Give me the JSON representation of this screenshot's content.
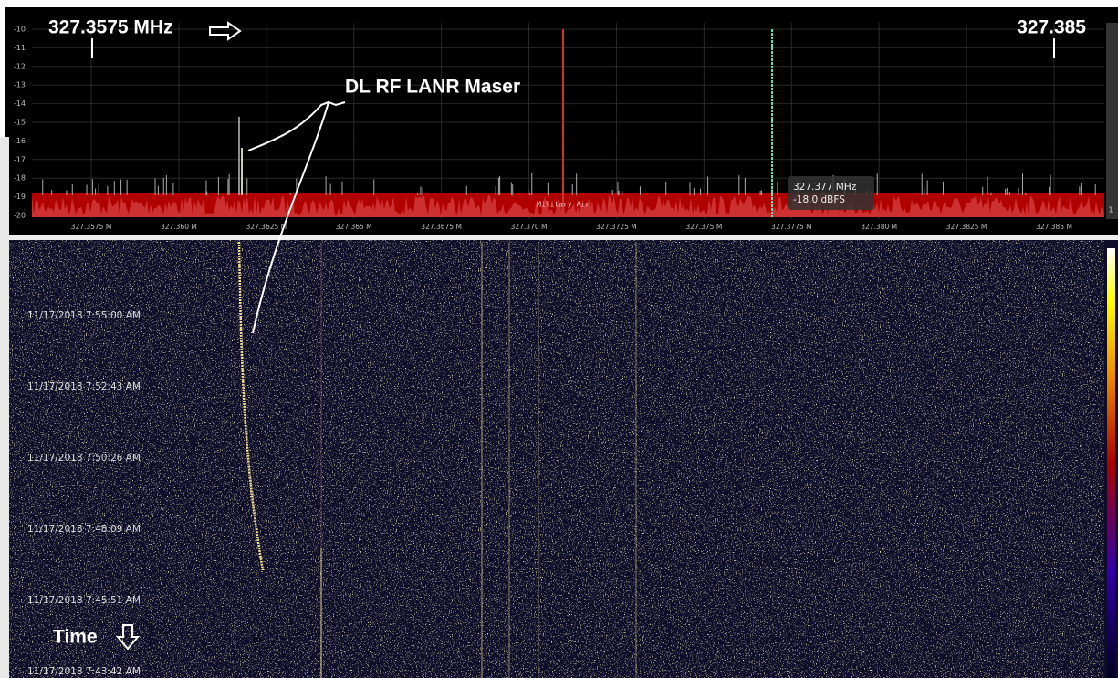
{
  "spectrum": {
    "yticks": [
      -10,
      -11,
      -12,
      -13,
      -14,
      -15,
      -16,
      -17,
      -18,
      -19,
      -20
    ],
    "xticks": [
      "327.3575 M",
      "327.360 M",
      "327.3625 M",
      "327.365 M",
      "327.3675 M",
      "327.370 M",
      "327.3725 M",
      "327.375 M",
      "327.3775 M",
      "327.380 M",
      "327.3825 M",
      "327.385 M"
    ],
    "band_label": "Military Air",
    "tooltip": {
      "frequency": "327.377 MHz",
      "level": "-18.0 dBFS"
    },
    "side_label": "1"
  },
  "annotations": {
    "start_freq": "327.3575 MHz",
    "end_freq": "327.385",
    "signal": "DL RF LANR Maser",
    "time": "Time"
  },
  "waterfall": {
    "timestamps": [
      "11/17/2018 7:55:00 AM",
      "11/17/2018 7:52:43 AM",
      "11/17/2018 7:50:26 AM",
      "11/17/2018 7:48:09 AM",
      "11/17/2018 7:45:51 AM",
      "11/17/2018 7:43:42 AM"
    ]
  }
}
